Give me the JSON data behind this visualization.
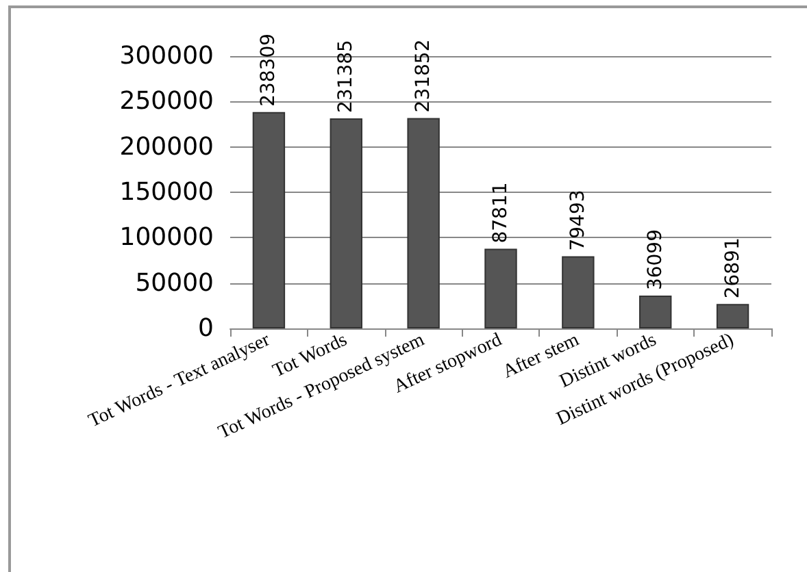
{
  "chart_data": {
    "type": "bar",
    "categories": [
      "Tot Words - Text analyser",
      "Tot Words",
      "Tot Words - Proposed system",
      "After stopword",
      "After stem",
      "Distint words",
      "Distint words (Proposed)"
    ],
    "values": [
      238309,
      231385,
      231852,
      87811,
      79493,
      36099,
      26891
    ],
    "color": "#555555",
    "ylim": [
      0,
      300000
    ],
    "yticks": [
      0,
      50000,
      100000,
      150000,
      200000,
      250000,
      300000
    ],
    "grid": "y",
    "data_labels": true
  }
}
